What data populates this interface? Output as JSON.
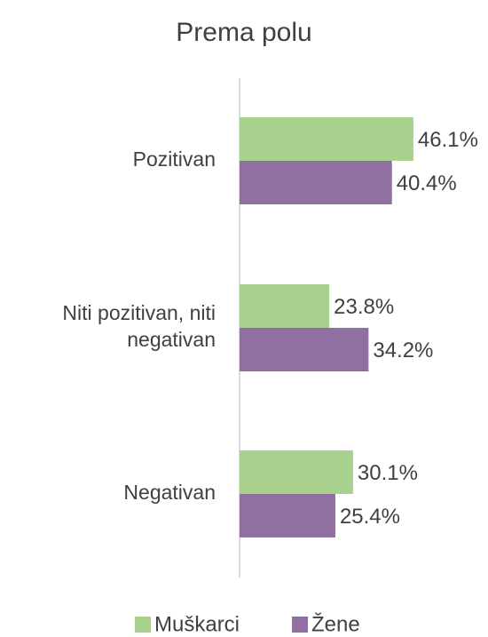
{
  "chart_data": {
    "type": "bar",
    "orientation": "horizontal",
    "title": "Prema polu",
    "categories": [
      "Pozitivan",
      "Niti pozitivan, niti negativan",
      "Negativan"
    ],
    "series": [
      {
        "name": "Muškarci",
        "color": "#a9d18e",
        "values": [
          46.1,
          23.8,
          30.1
        ],
        "value_labels": [
          "46.1%",
          "23.8%",
          "30.1%"
        ]
      },
      {
        "name": "Žene",
        "color": "#8f70a0",
        "values": [
          40.4,
          34.2,
          25.4
        ],
        "value_labels": [
          "40.4%",
          "34.2%",
          "25.4%"
        ]
      }
    ],
    "legend": "bottom"
  }
}
